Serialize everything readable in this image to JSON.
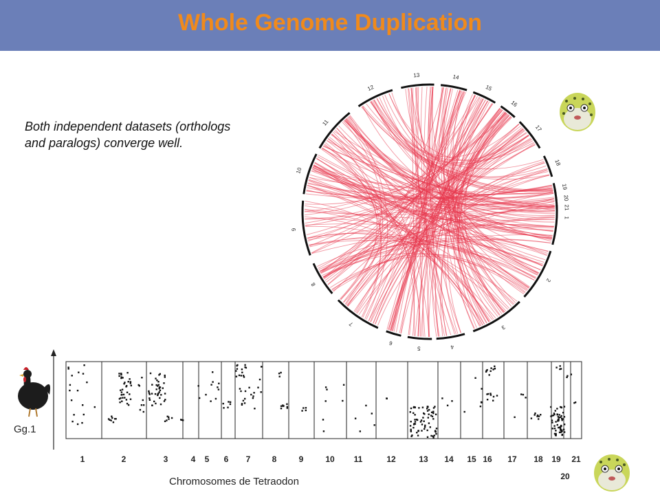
{
  "header": {
    "title": "Whole Genome Duplication"
  },
  "caption": {
    "text": "Both independent datasets (orthologs and paralogs) converge well."
  },
  "circos": {
    "chromosomes": [
      "1",
      "2",
      "3",
      "4",
      "5",
      "6",
      "7",
      "8",
      "9",
      "10",
      "11",
      "12",
      "13",
      "14",
      "15",
      "16",
      "17",
      "18",
      "19",
      "20",
      "21"
    ],
    "link_color": "#e8384f"
  },
  "dotplot": {
    "x_chromosomes": [
      "1",
      "2",
      "3",
      "4",
      "5",
      "6",
      "7",
      "8",
      "9",
      "10",
      "11",
      "12",
      "13",
      "14",
      "15",
      "16",
      "17",
      "18",
      "19",
      "21"
    ],
    "x_chromosome_20": "20",
    "xlabel": "Chromosomes de Tetraodon",
    "ylabel": "Gg.1"
  },
  "icons": [
    "chicken-icon",
    "pufferfish-icon"
  ]
}
